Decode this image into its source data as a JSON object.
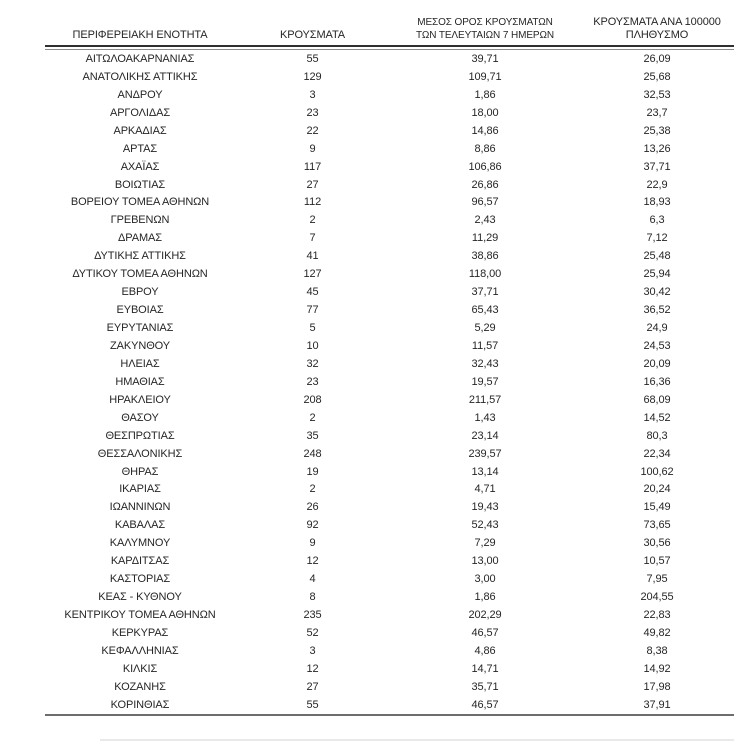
{
  "table": {
    "columns": [
      {
        "id": "region",
        "lines": [
          "ΠΕΡΙΦΕΡΕΙΑΚΗ ΕΝΟΤΗΤΑ"
        ]
      },
      {
        "id": "cases",
        "lines": [
          "ΚΡΟΥΣΜΑΤΑ"
        ]
      },
      {
        "id": "avg7",
        "lines": [
          "ΜΕΣΟΣ ΟΡΟΣ ΚΡΟΥΣΜΑΤΩΝ",
          "ΤΩΝ ΤΕΛΕΥΤΑΙΩΝ 7 ΗΜΕΡΩΝ"
        ]
      },
      {
        "id": "per100k",
        "lines": [
          "ΚΡΟΥΣΜΑΤΑ ΑΝΑ 100000",
          "ΠΛΗΘΥΣΜΟ"
        ]
      }
    ],
    "rows": [
      {
        "region": "ΑΙΤΩΛΟΑΚΑΡΝΑΝΙΑΣ",
        "cases": "55",
        "avg7": "39,71",
        "per100k": "26,09"
      },
      {
        "region": "ΑΝΑΤΟΛΙΚΗΣ ΑΤΤΙΚΗΣ",
        "cases": "129",
        "avg7": "109,71",
        "per100k": "25,68"
      },
      {
        "region": "ΑΝΔΡΟΥ",
        "cases": "3",
        "avg7": "1,86",
        "per100k": "32,53"
      },
      {
        "region": "ΑΡΓΟΛΙΔΑΣ",
        "cases": "23",
        "avg7": "18,00",
        "per100k": "23,7"
      },
      {
        "region": "ΑΡΚΑΔΙΑΣ",
        "cases": "22",
        "avg7": "14,86",
        "per100k": "25,38"
      },
      {
        "region": "ΑΡΤΑΣ",
        "cases": "9",
        "avg7": "8,86",
        "per100k": "13,26"
      },
      {
        "region": "ΑΧΑΪΑΣ",
        "cases": "117",
        "avg7": "106,86",
        "per100k": "37,71"
      },
      {
        "region": "ΒΟΙΩΤΙΑΣ",
        "cases": "27",
        "avg7": "26,86",
        "per100k": "22,9"
      },
      {
        "region": "ΒΟΡΕΙΟΥ ΤΟΜΕΑ ΑΘΗΝΩΝ",
        "cases": "112",
        "avg7": "96,57",
        "per100k": "18,93"
      },
      {
        "region": "ΓΡΕΒΕΝΩΝ",
        "cases": "2",
        "avg7": "2,43",
        "per100k": "6,3"
      },
      {
        "region": "ΔΡΑΜΑΣ",
        "cases": "7",
        "avg7": "11,29",
        "per100k": "7,12"
      },
      {
        "region": "ΔΥΤΙΚΗΣ ΑΤΤΙΚΗΣ",
        "cases": "41",
        "avg7": "38,86",
        "per100k": "25,48"
      },
      {
        "region": "ΔΥΤΙΚΟΥ ΤΟΜΕΑ ΑΘΗΝΩΝ",
        "cases": "127",
        "avg7": "118,00",
        "per100k": "25,94"
      },
      {
        "region": "ΕΒΡΟΥ",
        "cases": "45",
        "avg7": "37,71",
        "per100k": "30,42"
      },
      {
        "region": "ΕΥΒΟΙΑΣ",
        "cases": "77",
        "avg7": "65,43",
        "per100k": "36,52"
      },
      {
        "region": "ΕΥΡΥΤΑΝΙΑΣ",
        "cases": "5",
        "avg7": "5,29",
        "per100k": "24,9"
      },
      {
        "region": "ΖΑΚΥΝΘΟΥ",
        "cases": "10",
        "avg7": "11,57",
        "per100k": "24,53"
      },
      {
        "region": "ΗΛΕΙΑΣ",
        "cases": "32",
        "avg7": "32,43",
        "per100k": "20,09"
      },
      {
        "region": "ΗΜΑΘΙΑΣ",
        "cases": "23",
        "avg7": "19,57",
        "per100k": "16,36"
      },
      {
        "region": "ΗΡΑΚΛΕΙΟΥ",
        "cases": "208",
        "avg7": "211,57",
        "per100k": "68,09"
      },
      {
        "region": "ΘΑΣΟΥ",
        "cases": "2",
        "avg7": "1,43",
        "per100k": "14,52"
      },
      {
        "region": "ΘΕΣΠΡΩΤΙΑΣ",
        "cases": "35",
        "avg7": "23,14",
        "per100k": "80,3"
      },
      {
        "region": "ΘΕΣΣΑΛΟΝΙΚΗΣ",
        "cases": "248",
        "avg7": "239,57",
        "per100k": "22,34"
      },
      {
        "region": "ΘΗΡΑΣ",
        "cases": "19",
        "avg7": "13,14",
        "per100k": "100,62"
      },
      {
        "region": "ΙΚΑΡΙΑΣ",
        "cases": "2",
        "avg7": "4,71",
        "per100k": "20,24"
      },
      {
        "region": "ΙΩΑΝΝΙΝΩΝ",
        "cases": "26",
        "avg7": "19,43",
        "per100k": "15,49"
      },
      {
        "region": "ΚΑΒΑΛΑΣ",
        "cases": "92",
        "avg7": "52,43",
        "per100k": "73,65"
      },
      {
        "region": "ΚΑΛΥΜΝΟΥ",
        "cases": "9",
        "avg7": "7,29",
        "per100k": "30,56"
      },
      {
        "region": "ΚΑΡΔΙΤΣΑΣ",
        "cases": "12",
        "avg7": "13,00",
        "per100k": "10,57"
      },
      {
        "region": "ΚΑΣΤΟΡΙΑΣ",
        "cases": "4",
        "avg7": "3,00",
        "per100k": "7,95"
      },
      {
        "region": "ΚΕΑΣ - ΚΥΘΝΟΥ",
        "cases": "8",
        "avg7": "1,86",
        "per100k": "204,55"
      },
      {
        "region": "ΚΕΝΤΡΙΚΟΥ ΤΟΜΕΑ ΑΘΗΝΩΝ",
        "cases": "235",
        "avg7": "202,29",
        "per100k": "22,83"
      },
      {
        "region": "ΚΕΡΚΥΡΑΣ",
        "cases": "52",
        "avg7": "46,57",
        "per100k": "49,82"
      },
      {
        "region": "ΚΕΦΑΛΛΗΝΙΑΣ",
        "cases": "3",
        "avg7": "4,86",
        "per100k": "8,38"
      },
      {
        "region": "ΚΙΛΚΙΣ",
        "cases": "12",
        "avg7": "14,71",
        "per100k": "14,92"
      },
      {
        "region": "ΚΟΖΑΝΗΣ",
        "cases": "27",
        "avg7": "35,71",
        "per100k": "17,98"
      },
      {
        "region": "ΚΟΡΙΝΘΙΑΣ",
        "cases": "55",
        "avg7": "46,57",
        "per100k": "37,91"
      }
    ]
  },
  "colors": {
    "text": "#262626",
    "header_rule_dark": "#2f2f2f",
    "header_rule_light": "#8c8c8c",
    "bottom_rule": "#6d6d6d",
    "footer_strip": "#e9e9e9"
  }
}
